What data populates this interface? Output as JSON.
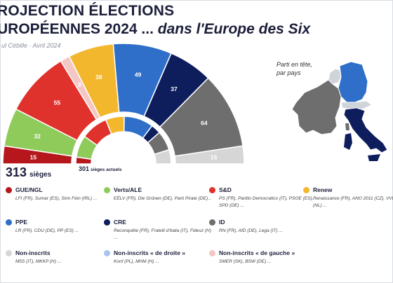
{
  "header": {
    "title_line1": "ROJECTION ÉLECTIONS",
    "title_line2_main": "UROPÉENNES 2024 ...",
    "title_line2_italic": "dans l'Europe des Six",
    "byline": "ul Cébille · Avril 2024"
  },
  "totals": {
    "seats_value": "313",
    "seats_label": "sièges",
    "current_value": "301",
    "current_label": "sièges actuels"
  },
  "map": {
    "label": "Parti en tête, par pays"
  },
  "chart_data": {
    "type": "hemicycle",
    "order": [
      "GUE/NGL",
      "Verts/ALE",
      "S&D",
      "Non-inscrits « de gauche »",
      "Renew",
      "PPE",
      "CRE",
      "ID",
      "Non-inscrits"
    ],
    "outer_ring": {
      "total": 313,
      "values": [
        {
          "group": "GUE/NGL",
          "value": 15,
          "color": "#b5171c"
        },
        {
          "group": "Verts/ALE",
          "value": 32,
          "color": "#8fcb5a"
        },
        {
          "group": "S&D",
          "value": 55,
          "color": "#e0322c"
        },
        {
          "group": "Non-inscrits « de gauche »",
          "value": 8,
          "color": "#f4c6c4"
        },
        {
          "group": "Renew",
          "value": 38,
          "color": "#f2b72d"
        },
        {
          "group": "PPE",
          "value": 49,
          "color": "#2f6fc9"
        },
        {
          "group": "CRE",
          "value": 37,
          "color": "#0e1d5c"
        },
        {
          "group": "ID",
          "value": 64,
          "color": "#6e6e6e"
        },
        {
          "group": "Non-inscrits",
          "value": 15,
          "color": "#d6d6d6"
        }
      ],
      "labels": [
        "15",
        "32",
        "55",
        "8",
        "38",
        "49",
        "37",
        "64",
        "15"
      ]
    },
    "inner_ring": {
      "total": 301,
      "values": [
        {
          "group": "GUE/NGL",
          "value": 14,
          "color": "#b5171c"
        },
        {
          "group": "Verts/ALE",
          "value": 45,
          "color": "#8fcb5a"
        },
        {
          "group": "S&D",
          "value": 55,
          "color": "#e0322c"
        },
        {
          "group": "Renew",
          "value": 38,
          "color": "#f2b72d"
        },
        {
          "group": "PPE",
          "value": 60,
          "color": "#2f6fc9"
        },
        {
          "group": "CRE",
          "value": 20,
          "color": "#0e1d5c"
        },
        {
          "group": "ID",
          "value": 40,
          "color": "#6e6e6e"
        },
        {
          "group": "Non-inscrits",
          "value": 29,
          "color": "#d6d6d6"
        }
      ]
    }
  },
  "legend": [
    {
      "name": "GUE/NGL",
      "color": "#b5171c",
      "desc": "LFI (FR), Sumar (ES), Sinn Féin (IRL) ..."
    },
    {
      "name": "Verts/ALE",
      "color": "#8fcb5a",
      "desc": "EÉLV (FR), Die Grünen (DE), Parti Pirate (DE)..."
    },
    {
      "name": "S&D",
      "color": "#e0322c",
      "desc": "PS (FR), Partito Democratico (IT), PSOE (ES), SPD (DE) ..."
    },
    {
      "name": "Renew",
      "color": "#f2b72d",
      "desc": "Renaissance (FR), ANO 2011 (CZ), VVD (NL) ..."
    },
    {
      "name": "PPE",
      "color": "#2f6fc9",
      "desc": "LR (FR), CDU (DE), PP (ES) ..."
    },
    {
      "name": "CRE",
      "color": "#0e1d5c",
      "desc": "Reconquête (FR), Fratelli d'Italia (IT), Fidesz (H) ..."
    },
    {
      "name": "ID",
      "color": "#6e6e6e",
      "desc": "RN (FR), AfD (DE), Lega (IT) ..."
    },
    {
      "name": "Non-inscrits",
      "color": "#d6d6d6",
      "desc": "M5S (IT), MKKP (H) ..."
    },
    {
      "name": "Non-inscrits « de droite »",
      "color": "#a9c4ec",
      "desc": "Konf (PL), MHM (H) ..."
    },
    {
      "name": "Non-inscrits « de gauche »",
      "color": "#f4c6c4",
      "desc": "SMER (SK), BSW (DE) ..."
    }
  ],
  "colors": {
    "ppe": "#2f6fc9",
    "cre": "#0e1d5c",
    "id": "#6e6e6e",
    "land_other": "#cfd3da"
  }
}
